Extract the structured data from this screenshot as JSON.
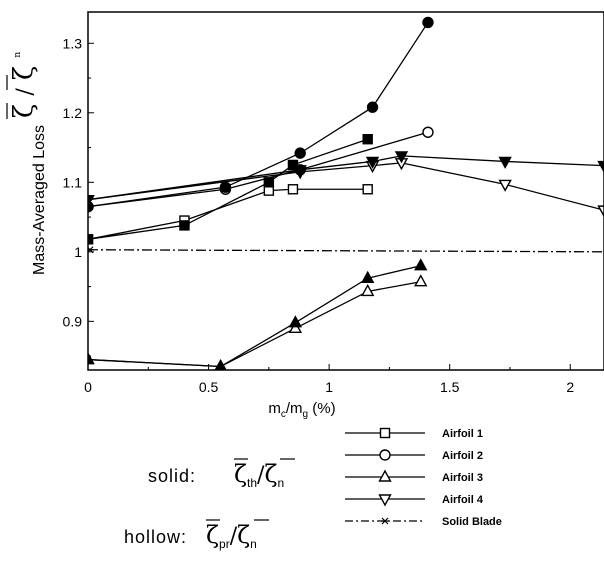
{
  "chart_data": {
    "type": "line",
    "xlabel": {
      "m": "m",
      "c": "c",
      "slash": "/m",
      "g": "g",
      "unit": " (%)"
    },
    "ylabel": {
      "text": "Mass-Averaged Loss",
      "zeta": "ζ",
      "slash": "/",
      "n": "n"
    },
    "xlim": [
      0,
      2.14
    ],
    "ylim": [
      0.83,
      1.345
    ],
    "xticks": [
      "0",
      "0.5",
      "1",
      "1.5",
      "2"
    ],
    "yticks": [
      "0.9",
      "1",
      "1.1",
      "1.2",
      "1.3"
    ],
    "xtick_values": [
      0,
      0.5,
      1,
      1.5,
      2
    ],
    "ytick_values": [
      0.9,
      1,
      1.1,
      1.2,
      1.3
    ],
    "grid": false,
    "legend_placement": "bottom-right, below plot",
    "series": [
      {
        "name": "Airfoil 1",
        "marker": "square",
        "variant": "hollow",
        "x": [
          0,
          0.4,
          0.75,
          0.85,
          1.16
        ],
        "y": [
          1.018,
          1.045,
          1.088,
          1.09,
          1.09
        ]
      },
      {
        "name": "Airfoil 1",
        "marker": "square",
        "variant": "solid",
        "x": [
          0,
          0.4,
          0.75,
          0.85,
          1.16
        ],
        "y": [
          1.018,
          1.038,
          1.1,
          1.125,
          1.162
        ]
      },
      {
        "name": "Airfoil 2",
        "marker": "circle",
        "variant": "hollow",
        "x": [
          0,
          0.57,
          0.88,
          1.41
        ],
        "y": [
          1.065,
          1.09,
          1.118,
          1.172
        ]
      },
      {
        "name": "Airfoil 2",
        "marker": "circle",
        "variant": "solid",
        "x": [
          0,
          0.57,
          0.88,
          1.18,
          1.41
        ],
        "y": [
          1.065,
          1.093,
          1.142,
          1.208,
          1.33
        ]
      },
      {
        "name": "Airfoil 3",
        "marker": "triangle-up",
        "variant": "hollow",
        "x": [
          0,
          0.55,
          0.86,
          1.16,
          1.38
        ],
        "y": [
          0.845,
          0.835,
          0.89,
          0.943,
          0.957
        ]
      },
      {
        "name": "Airfoil 3",
        "marker": "triangle-up",
        "variant": "solid",
        "x": [
          0,
          0.55,
          0.86,
          1.16,
          1.38
        ],
        "y": [
          0.845,
          0.835,
          0.898,
          0.962,
          0.98
        ]
      },
      {
        "name": "Airfoil 4",
        "marker": "triangle-down",
        "variant": "hollow",
        "x": [
          0,
          0.88,
          1.18,
          1.3,
          1.73,
          2.14
        ],
        "y": [
          1.075,
          1.115,
          1.124,
          1.128,
          1.097,
          1.06
        ]
      },
      {
        "name": "Airfoil 4",
        "marker": "triangle-down",
        "variant": "solid",
        "x": [
          0,
          0.88,
          1.18,
          1.3,
          1.73,
          2.14
        ],
        "y": [
          1.075,
          1.118,
          1.13,
          1.138,
          1.13,
          1.124
        ]
      },
      {
        "name": "Solid Blade",
        "marker": "star",
        "variant": "dashdot",
        "x": [
          0,
          2.14
        ],
        "y": [
          1.003,
          1.0
        ]
      }
    ],
    "legend": [
      {
        "label": "Airfoil 1",
        "marker": "square"
      },
      {
        "label": "Airfoil 2",
        "marker": "circle"
      },
      {
        "label": "Airfoil 3",
        "marker": "triangle-up"
      },
      {
        "label": "Airfoil 4",
        "marker": "triangle-down"
      },
      {
        "label": "Solid Blade",
        "marker": "star"
      }
    ],
    "annotations": {
      "solid": {
        "label": "solid:",
        "zeta": "ζ",
        "num_sub": "th",
        "slash": "/",
        "den_sub": "n"
      },
      "hollow": {
        "label": "hollow:",
        "zeta": "ζ",
        "num_sub": "pr",
        "slash": "/",
        "den_sub": "n"
      }
    },
    "colors": {
      "line": "#000000",
      "background": "#ffffff"
    }
  }
}
